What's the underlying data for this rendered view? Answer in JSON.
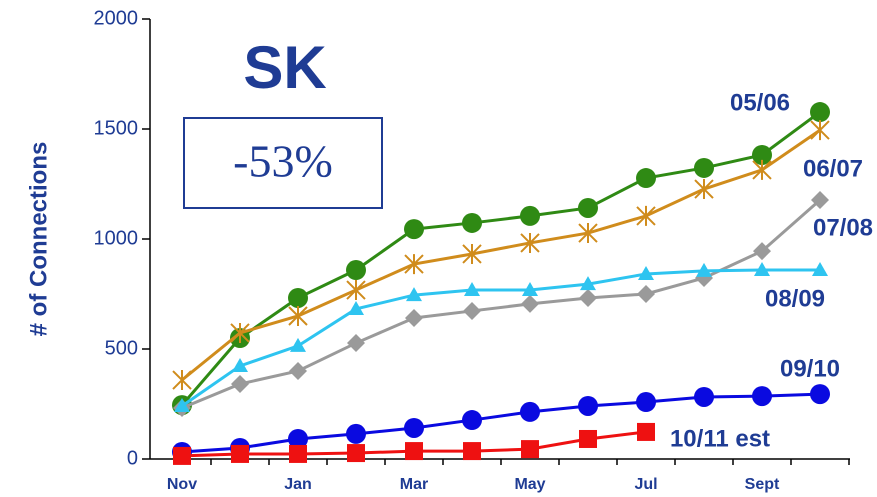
{
  "chart_data": {
    "type": "line",
    "title": "SK",
    "annotation": "-53%",
    "y_label": "# of Connections",
    "categories": [
      "Nov",
      null,
      "Jan",
      null,
      "Mar",
      null,
      "May",
      null,
      "Jul",
      null,
      "Sept",
      null
    ],
    "ylim": [
      0,
      2000
    ],
    "yticks": [
      0,
      500,
      1000,
      1500,
      2000
    ],
    "series": [
      {
        "name": "05/06",
        "color": "#2f8a14",
        "marker": "circle",
        "values": [
          245,
          550,
          732,
          859,
          1045,
          1073,
          1105,
          1141,
          1277,
          1323,
          1382,
          1577
        ]
      },
      {
        "name": "06/07",
        "color": "#d08c1c",
        "marker": "star",
        "values": [
          359,
          573,
          650,
          768,
          886,
          932,
          982,
          1027,
          1105,
          1227,
          1314,
          1495
        ]
      },
      {
        "name": "07/08",
        "color": "#9a9a9a",
        "marker": "diamond",
        "values": [
          232,
          341,
          400,
          527,
          641,
          673,
          705,
          732,
          750,
          823,
          945,
          1177
        ]
      },
      {
        "name": "08/09",
        "color": "#2ec4f0",
        "marker": "triangle",
        "values": [
          241,
          423,
          514,
          682,
          745,
          768,
          768,
          795,
          841,
          855,
          859,
          859
        ]
      },
      {
        "name": "09/10",
        "color": "#0a0ae0",
        "marker": "circle",
        "values": [
          32,
          50,
          91,
          114,
          141,
          177,
          214,
          241,
          259,
          282,
          286,
          295
        ]
      },
      {
        "name": "10/11 est",
        "color": "#ee1111",
        "marker": "square",
        "values": [
          14,
          23,
          23,
          27,
          36,
          36,
          45,
          91,
          123,
          null,
          null,
          null
        ]
      }
    ]
  }
}
